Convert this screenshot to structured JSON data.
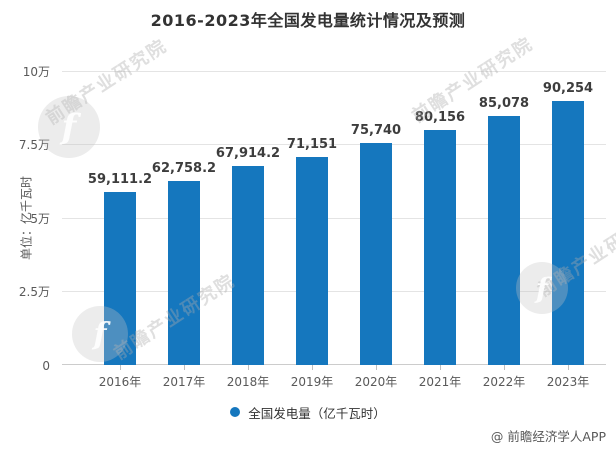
{
  "chart_data": {
    "type": "bar",
    "title": "2016-2023年全国发电量统计情况及预测",
    "categories": [
      "2016年",
      "2017年",
      "2018年",
      "2019年",
      "2020年",
      "2021年",
      "2022年",
      "2023年"
    ],
    "values": [
      59111.2,
      62758.2,
      67914.2,
      71151,
      75740,
      80156,
      85078,
      90254
    ],
    "value_labels": [
      "59,111.2",
      "62,758.2",
      "67,914.2",
      "71,151",
      "75,740",
      "80,156",
      "85,078",
      "90,254"
    ],
    "ylabel": "单位：亿千瓦时",
    "y_ticks": [
      "0",
      "2.5万",
      "5万",
      "7.5万",
      "10万"
    ],
    "ylim": [
      0,
      100000
    ],
    "grid": true,
    "legend": {
      "label": "全国发电量（亿千瓦时）",
      "position": "bottom"
    },
    "bar_color": "#1577BE"
  },
  "footer": {
    "credit": "@ 前瞻经济学人APP"
  },
  "watermark": {
    "brand_text": "前瞻产业研究院",
    "logo_glyph": "f"
  },
  "colors": {
    "bar": "#1577BE",
    "gridline": "#e4e4e4",
    "baseline": "#cccccc",
    "title_text": "#333333",
    "tick_text": "#595959",
    "value_label_text": "#3d3d3d",
    "background": "#ffffff"
  }
}
